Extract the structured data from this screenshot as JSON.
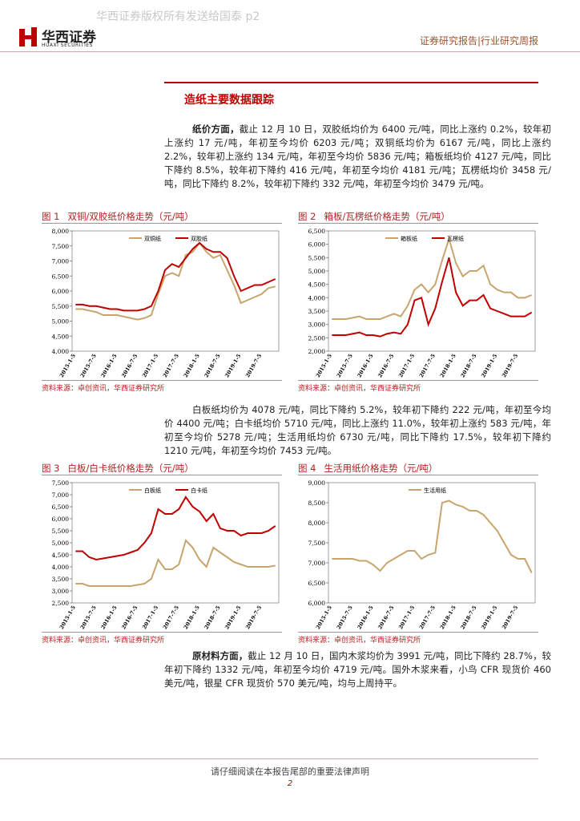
{
  "header": {
    "watermark": "华西证券版权所有发送给国泰 p2",
    "logo_cn": "华西证券",
    "logo_en": "HUAXI SECURITIES",
    "report_type": "证券研究报告|行业研究周报"
  },
  "section_title": "造纸主要数据跟踪",
  "paragraphs": [
    {
      "lead": "纸价方面，",
      "text": "截止 12 月 10 日，双胶纸均价为 6400 元/吨，同比上涨约 0.2%，较年初上涨约 17 元/吨，年初至今均价 6203 元/吨；双铜纸均价为 6167 元/吨，同比上涨约 2.2%，较年初上涨约 134 元/吨，年初至今均价 5836 元/吨；箱板纸均价 4127 元/吨，同比下降约 8.5%，较年初下降约 416 元/吨，年初至今均价 4181 元/吨；瓦楞纸均价 3458 元/吨，同比下降约 8.2%，较年初下降约 332 元/吨，年初至今均价 3479 元/吨。"
    },
    {
      "text": "白板纸均价为 4078 元/吨，同比下降约 5.2%，较年初下降约 222 元/吨，年初至今均价 4400 元/吨；白卡纸均价 5710 元/吨，同比上涨约 11.0%，较年初上涨约 583 元/吨，年初至今均价 5278 元/吨；生活用纸均价 6730 元/吨，同比下降约 17.5%，较年初下降约 1210 元/吨，年初至今均价 7453 元/吨。"
    },
    {
      "lead": "原材料方面，",
      "text": "截止 12 月 10 日，国内木浆均价为 3991 元/吨，同比下降约 28.7%，较年初下降约 1332 元/吨，年初至今均价 4719 元/吨。国外木浆来看，小鸟 CFR 现货价 460 美元/吨，银星 CFR 现货价 570 美元/吨，均与上周持平。"
    }
  ],
  "chart_data": [
    {
      "type": "line",
      "figure": "图 1",
      "title": "双铜/双胶纸价格走势（元/吨）",
      "source": "资料来源：卓创资讯，华西证券研究所",
      "categories": [
        "2015-1-5",
        null,
        null,
        "2015-7-5",
        null,
        null,
        "2016-1-5",
        null,
        null,
        "2016-7-5",
        null,
        null,
        "2017-1-5",
        null,
        null,
        "2017-7-5",
        null,
        null,
        "2018-1-5",
        null,
        null,
        "2018-7-5",
        null,
        null,
        "2019-1-5",
        null,
        null,
        "2019-7-5",
        null,
        null
      ],
      "series": [
        {
          "name": "双铜纸",
          "color": "#c8a46e",
          "values": [
            5400,
            5400,
            5350,
            5300,
            5200,
            5200,
            5200,
            5150,
            5100,
            5050,
            5100,
            5200,
            5900,
            6500,
            6600,
            6500,
            7200,
            7300,
            7600,
            7300,
            7100,
            7200,
            6700,
            6200,
            5600,
            5700,
            5800,
            5900,
            6100,
            6150
          ]
        },
        {
          "name": "双胶纸",
          "color": "#c00000",
          "values": [
            5550,
            5550,
            5500,
            5500,
            5450,
            5400,
            5400,
            5350,
            5350,
            5350,
            5400,
            5500,
            6000,
            6700,
            6900,
            6800,
            7100,
            7400,
            7600,
            7400,
            7300,
            7300,
            7100,
            6500,
            6000,
            6100,
            6200,
            6200,
            6300,
            6400
          ]
        }
      ],
      "ylim": [
        4000,
        8000
      ],
      "yticks": [
        {
          "value": 4000,
          "label": "4,000"
        },
        {
          "value": 4500,
          "label": "4,500"
        },
        {
          "value": 5000,
          "label": "5,000"
        },
        {
          "value": 5500,
          "label": "5,500"
        },
        {
          "value": 6000,
          "label": "6,000"
        },
        {
          "value": 6500,
          "label": "6,500"
        },
        {
          "value": 7000,
          "label": "7,000"
        },
        {
          "value": 7500,
          "label": "7,500"
        },
        {
          "value": 8000,
          "label": "8,000"
        }
      ],
      "grid": false
    },
    {
      "type": "line",
      "figure": "图 2",
      "title": "箱板/瓦楞纸价格走势（元/吨）",
      "source": "资料来源：卓创资讯，华西证券研究所",
      "categories": [
        "2015-1-5",
        null,
        null,
        "2015-7-5",
        null,
        null,
        "2016-1-5",
        null,
        null,
        "2016-7-5",
        null,
        null,
        "2017-1-5",
        null,
        null,
        "2017-7-5",
        null,
        null,
        "2018-1-5",
        null,
        null,
        "2018-7-5",
        null,
        null,
        "2019-1-5",
        null,
        null,
        "2019-7-5",
        null,
        null
      ],
      "series": [
        {
          "name": "箱板纸",
          "color": "#c8a46e",
          "values": [
            3200,
            3200,
            3200,
            3250,
            3300,
            3200,
            3200,
            3200,
            3300,
            3400,
            3300,
            3700,
            4300,
            4500,
            4200,
            4500,
            5400,
            6200,
            5300,
            4800,
            5000,
            5000,
            5200,
            4500,
            4300,
            4200,
            4200,
            4000,
            4000,
            4100
          ]
        },
        {
          "name": "瓦楞纸",
          "color": "#c00000",
          "values": [
            2600,
            2600,
            2600,
            2650,
            2700,
            2600,
            2600,
            2550,
            2650,
            2700,
            2650,
            3000,
            3900,
            4000,
            3000,
            3600,
            4600,
            5500,
            4200,
            3700,
            3900,
            3900,
            4100,
            3600,
            3500,
            3400,
            3300,
            3300,
            3300,
            3450
          ]
        }
      ],
      "ylim": [
        2000,
        6500
      ],
      "yticks": [
        {
          "value": 2000,
          "label": "2,000"
        },
        {
          "value": 2500,
          "label": "2,500"
        },
        {
          "value": 3000,
          "label": "3,000"
        },
        {
          "value": 3500,
          "label": "3,500"
        },
        {
          "value": 4000,
          "label": "4,000"
        },
        {
          "value": 4500,
          "label": "4,500"
        },
        {
          "value": 5000,
          "label": "5,000"
        },
        {
          "value": 5500,
          "label": "5,500"
        },
        {
          "value": 6000,
          "label": "6,000"
        },
        {
          "value": 6500,
          "label": "6,500"
        }
      ],
      "grid": false
    },
    {
      "type": "line",
      "figure": "图 3",
      "title": "白板/白卡纸价格走势（元/吨）",
      "source": "资料来源：卓创资讯，华西证券研究所",
      "categories": [
        "2015-1-5",
        null,
        null,
        "2015-7-5",
        null,
        null,
        "2016-1-5",
        null,
        null,
        "2016-7-5",
        null,
        null,
        "2017-1-5",
        null,
        null,
        "2017-7-5",
        null,
        null,
        "2018-1-5",
        null,
        null,
        "2018-7-5",
        null,
        null,
        "2019-1-5",
        null,
        null,
        "2019-7-5",
        null,
        null
      ],
      "series": [
        {
          "name": "白板纸",
          "color": "#c8a46e",
          "values": [
            3300,
            3300,
            3200,
            3200,
            3200,
            3200,
            3200,
            3200,
            3200,
            3250,
            3300,
            3500,
            4300,
            3900,
            3900,
            4100,
            5100,
            4800,
            4300,
            4000,
            4800,
            4600,
            4400,
            4200,
            4100,
            4000,
            4000,
            4000,
            4000,
            4050
          ]
        },
        {
          "name": "白卡纸",
          "color": "#c00000",
          "values": [
            4650,
            4650,
            4400,
            4300,
            4350,
            4400,
            4450,
            4500,
            4600,
            4700,
            5000,
            5400,
            6400,
            6200,
            6200,
            6400,
            6900,
            6500,
            6300,
            5900,
            6200,
            5600,
            5500,
            5500,
            5300,
            5400,
            5400,
            5400,
            5500,
            5700
          ]
        }
      ],
      "ylim": [
        2500,
        7500
      ],
      "yticks": [
        {
          "value": 2500,
          "label": "2,500"
        },
        {
          "value": 3000,
          "label": "3,000"
        },
        {
          "value": 3500,
          "label": "3,500"
        },
        {
          "value": 4000,
          "label": "4,000"
        },
        {
          "value": 4500,
          "label": "4,500"
        },
        {
          "value": 5000,
          "label": "5,000"
        },
        {
          "value": 5500,
          "label": "5,500"
        },
        {
          "value": 6000,
          "label": "6,000"
        },
        {
          "value": 6500,
          "label": "6,500"
        },
        {
          "value": 7000,
          "label": "7,000"
        },
        {
          "value": 7500,
          "label": "7,500"
        }
      ],
      "grid": false
    },
    {
      "type": "line",
      "figure": "图 4",
      "title": "生活用纸价格走势（元/吨）",
      "source": "资料来源：卓创资讯，华西证券研究所",
      "categories": [
        "2015-1-5",
        null,
        null,
        "2015-7-5",
        null,
        null,
        "2016-1-5",
        null,
        null,
        "2016-7-5",
        null,
        null,
        "2017-1-5",
        null,
        null,
        "2017-7-5",
        null,
        null,
        "2018-1-5",
        null,
        null,
        "2018-7-5",
        null,
        null,
        "2019-1-5",
        null,
        null,
        "2019-7-5",
        null,
        null
      ],
      "series": [
        {
          "name": "生活用纸",
          "color": "#c8a46e",
          "values": [
            7100,
            7100,
            7100,
            7100,
            7050,
            7050,
            6950,
            6800,
            7000,
            7100,
            7200,
            7300,
            7300,
            7100,
            7200,
            7250,
            8500,
            8550,
            8450,
            8400,
            8300,
            8300,
            8200,
            8000,
            7800,
            7500,
            7200,
            7100,
            7100,
            6750
          ]
        }
      ],
      "ylim": [
        6000,
        9000
      ],
      "yticks": [
        {
          "value": 6000,
          "label": "6,000"
        },
        {
          "value": 6500,
          "label": "6,500"
        },
        {
          "value": 7000,
          "label": "7,000"
        },
        {
          "value": 7500,
          "label": "7,500"
        },
        {
          "value": 8000,
          "label": "8,000"
        },
        {
          "value": 8500,
          "label": "8,500"
        },
        {
          "value": 9000,
          "label": "9,000"
        }
      ],
      "grid": false
    }
  ],
  "footer": {
    "notice": "请仔细阅读在本报告尾部的重要法律声明",
    "page": "2"
  }
}
